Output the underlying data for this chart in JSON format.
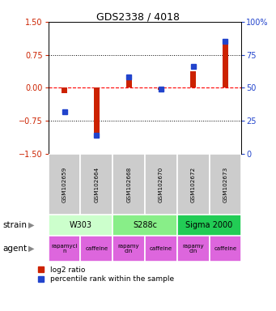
{
  "title": "GDS2338 / 4018",
  "samples": [
    "GSM102659",
    "GSM102664",
    "GSM102668",
    "GSM102670",
    "GSM102672",
    "GSM102673"
  ],
  "log2_ratio": [
    -0.12,
    -1.02,
    0.2,
    -0.04,
    0.38,
    1.02
  ],
  "percentile_rank": [
    32,
    14,
    58,
    49,
    66,
    85
  ],
  "ylim_left": [
    -1.5,
    1.5
  ],
  "ylim_right": [
    0,
    100
  ],
  "yticks_left": [
    -1.5,
    -0.75,
    0,
    0.75,
    1.5
  ],
  "yticks_right": [
    0,
    25,
    50,
    75,
    100
  ],
  "bar_color_log2": "#cc2200",
  "bar_color_pct": "#2244cc",
  "bar_width": 0.18,
  "strains": [
    {
      "label": "W303",
      "cols": [
        0,
        1
      ],
      "color": "#ccffcc"
    },
    {
      "label": "S288c",
      "cols": [
        2,
        3
      ],
      "color": "#88ee88"
    },
    {
      "label": "Sigma 2000",
      "cols": [
        4,
        5
      ],
      "color": "#22cc55"
    }
  ],
  "agent_labels": [
    "rapamycin",
    "caffeine",
    "rapamycin",
    "caffeine",
    "rapamycin",
    "caffeine"
  ],
  "agent_color": "#dd66dd",
  "legend_log2_label": "log2 ratio",
  "legend_pct_label": "percentile rank within the sample",
  "strain_row_label": "strain",
  "agent_row_label": "agent",
  "sample_bg_color": "#cccccc",
  "left_tick_color": "#cc2200",
  "right_tick_color": "#2244cc"
}
